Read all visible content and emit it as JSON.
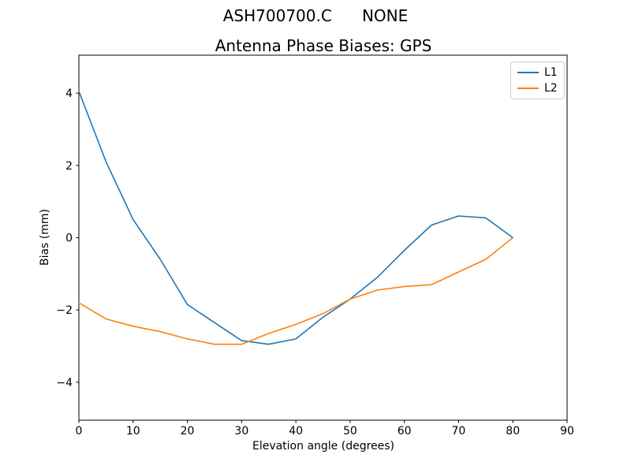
{
  "chart_data": {
    "type": "line",
    "suptitle": "ASH700700.C      NONE",
    "title": "Antenna Phase Biases: GPS",
    "xlabel": "Elevation angle (degrees)",
    "ylabel": "Bias (mm)",
    "xlim": [
      0,
      90
    ],
    "ylim": [
      -5.05,
      5.05
    ],
    "xticks": [
      0,
      10,
      20,
      30,
      40,
      50,
      60,
      70,
      80,
      90
    ],
    "yticks": [
      -4,
      -2,
      0,
      2,
      4
    ],
    "grid": false,
    "legend_position": "upper right",
    "x": [
      0,
      5,
      10,
      15,
      20,
      25,
      30,
      35,
      40,
      45,
      50,
      55,
      60,
      65,
      70,
      75,
      80
    ],
    "series": [
      {
        "name": "L1",
        "color": "#1f77b4",
        "values": [
          4.05,
          2.1,
          0.5,
          -0.6,
          -1.85,
          -2.35,
          -2.85,
          -2.95,
          -2.8,
          -2.2,
          -1.7,
          -1.1,
          -0.35,
          0.35,
          0.6,
          0.55,
          0.0
        ]
      },
      {
        "name": "L2",
        "color": "#ff7f0e",
        "values": [
          -1.8,
          -2.25,
          -2.45,
          -2.6,
          -2.8,
          -2.95,
          -2.95,
          -2.65,
          -2.4,
          -2.1,
          -1.7,
          -1.45,
          -1.35,
          -1.3,
          -0.95,
          -0.6,
          0.0
        ]
      }
    ]
  }
}
